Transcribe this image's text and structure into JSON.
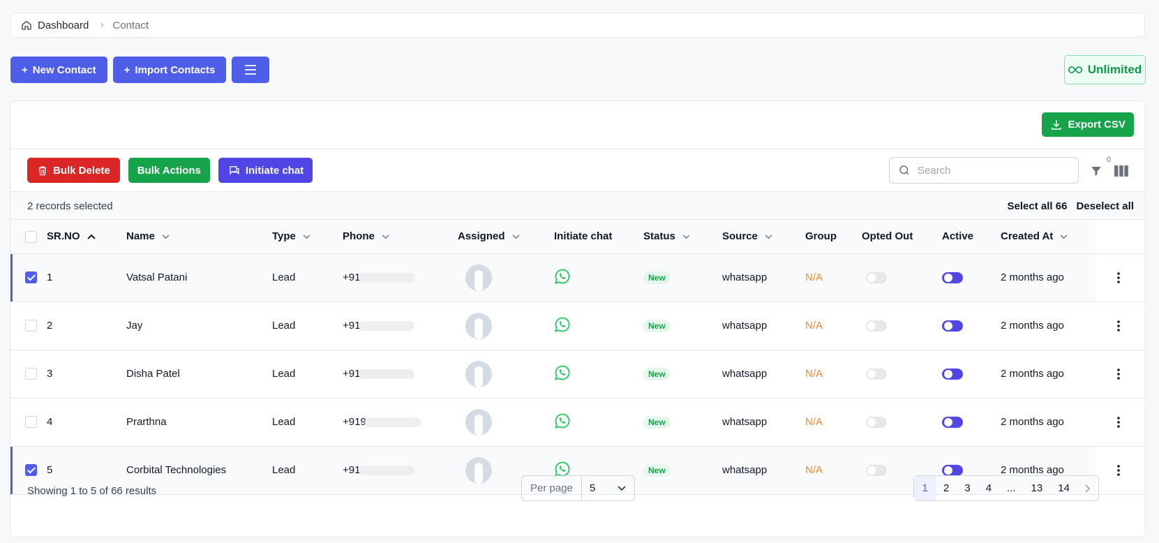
{
  "breadcrumb": {
    "home": "Dashboard",
    "current": "Contact"
  },
  "topbar": {
    "new_contact": "New Contact",
    "import_contacts": "Import Contacts",
    "plan": "Unlimited"
  },
  "card": {
    "export": "Export CSV"
  },
  "toolbar": {
    "bulk_delete": "Bulk Delete",
    "bulk_actions": "Bulk Actions",
    "initiate_chat": "Initiate chat",
    "search_placeholder": "Search",
    "filter_count": "0"
  },
  "selection": {
    "count_text": "2 records selected",
    "select_all": "Select all 66",
    "deselect_all": "Deselect all"
  },
  "table": {
    "headers": [
      "SR.NO",
      "Name",
      "Type",
      "Phone",
      "Assigned",
      "Initiate chat",
      "Status",
      "Source",
      "Group",
      "Opted Out",
      "Active",
      "Created At"
    ],
    "rows": [
      {
        "sr": "1",
        "name": "Vatsal Patani",
        "type": "Lead",
        "phone": "+91",
        "status": "New",
        "source": "whatsapp",
        "group": "N/A",
        "created": "2 months ago",
        "selected": true
      },
      {
        "sr": "2",
        "name": "Jay",
        "type": "Lead",
        "phone": "+91",
        "status": "New",
        "source": "whatsapp",
        "group": "N/A",
        "created": "2 months ago",
        "selected": false
      },
      {
        "sr": "3",
        "name": "Disha Patel",
        "type": "Lead",
        "phone": "+91",
        "status": "New",
        "source": "whatsapp",
        "group": "N/A",
        "created": "2 months ago",
        "selected": false
      },
      {
        "sr": "4",
        "name": "Prarthna",
        "type": "Lead",
        "phone": "+919",
        "status": "New",
        "source": "whatsapp",
        "group": "N/A",
        "created": "2 months ago",
        "selected": false
      },
      {
        "sr": "5",
        "name": "Corbital Technologies",
        "type": "Lead",
        "phone": "+91",
        "status": "New",
        "source": "whatsapp",
        "group": "N/A",
        "created": "2 months ago",
        "selected": true
      }
    ]
  },
  "footer": {
    "showing": "Showing 1 to 5 of 66 results",
    "per_page_label": "Per page",
    "per_page_value": "5",
    "pages": [
      "1",
      "2",
      "3",
      "4",
      "...",
      "13",
      "14"
    ]
  },
  "colors": {
    "primary": "#4f5ee9",
    "danger": "#dc2626",
    "success": "#16a34a",
    "indigo": "#4f46e5",
    "whatsapp": "#22c55e",
    "na": "#f28b30"
  }
}
